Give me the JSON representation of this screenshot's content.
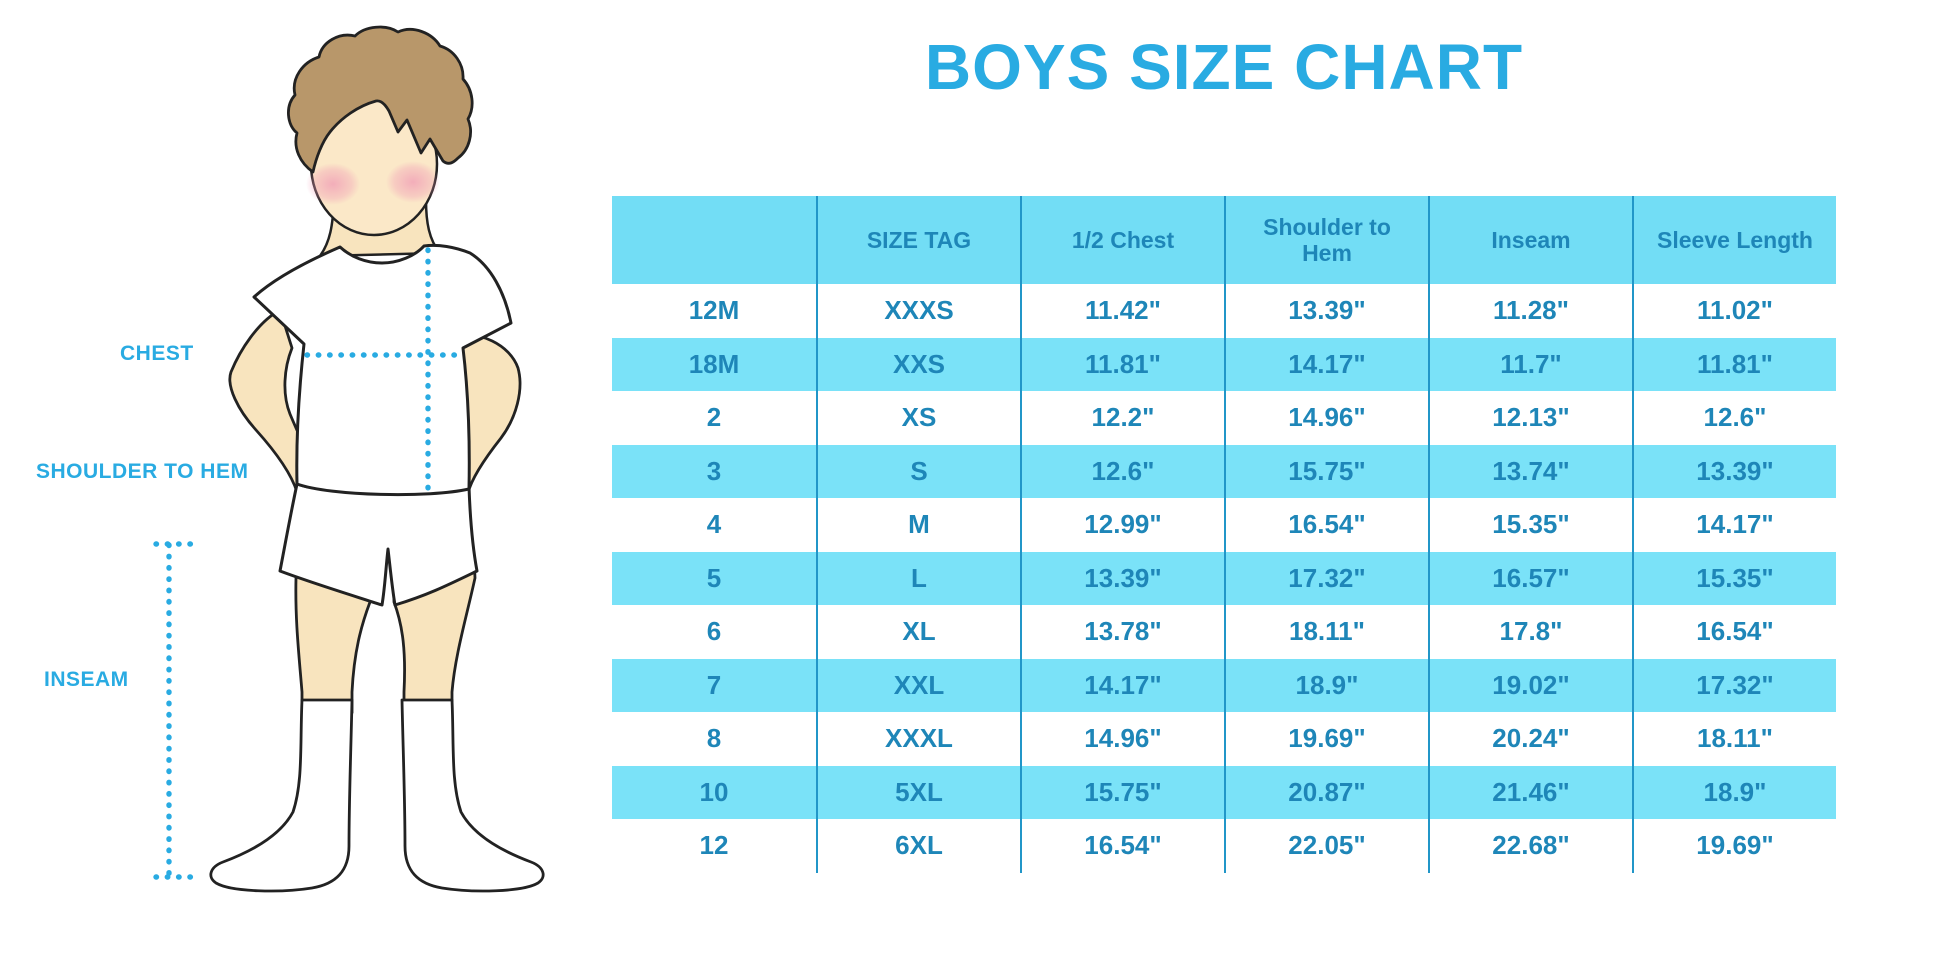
{
  "title": "BOYS SIZE CHART",
  "figure": {
    "chest_label": "CHEST",
    "shoulder_label": "SHOULDER TO HEM",
    "inseam_label": "INSEAM"
  },
  "chart_data": {
    "type": "table",
    "title": "BOYS SIZE CHART",
    "columns": [
      "",
      "SIZE TAG",
      "1/2 Chest",
      "Shoulder to Hem",
      "Inseam",
      "Sleeve Length"
    ],
    "rows": [
      [
        "12M",
        "XXXS",
        "11.42\"",
        "13.39\"",
        "11.28\"",
        "11.02\""
      ],
      [
        "18M",
        "XXS",
        "11.81\"",
        "14.17\"",
        "11.7\"",
        "11.81\""
      ],
      [
        "2",
        "XS",
        "12.2\"",
        "14.96\"",
        "12.13\"",
        "12.6\""
      ],
      [
        "3",
        "S",
        "12.6\"",
        "15.75\"",
        "13.74\"",
        "13.39\""
      ],
      [
        "4",
        "M",
        "12.99\"",
        "16.54\"",
        "15.35\"",
        "14.17\""
      ],
      [
        "5",
        "L",
        "13.39\"",
        "17.32\"",
        "16.57\"",
        "15.35\""
      ],
      [
        "6",
        "XL",
        "13.78\"",
        "18.11\"",
        "17.8\"",
        "16.54\""
      ],
      [
        "7",
        "XXL",
        "14.17\"",
        "18.9\"",
        "19.02\"",
        "17.32\""
      ],
      [
        "8",
        "XXXL",
        "14.96\"",
        "19.69\"",
        "20.24\"",
        "18.11\""
      ],
      [
        "10",
        "5XL",
        "15.75\"",
        "20.87\"",
        "21.46\"",
        "18.9\""
      ],
      [
        "12",
        "6XL",
        "16.54\"",
        "22.05\"",
        "22.68\"",
        "19.69\""
      ]
    ],
    "layout": {
      "row_striping": "alternating white and cyan, first data row white",
      "grid": "vertical column separators only",
      "legend": "none"
    }
  },
  "colors": {
    "accent_blue": "#29ABE2",
    "table_text": "#1E86B8",
    "stripe_cyan": "#7AE2F8",
    "header_cyan": "#72DDF5",
    "grid_line": "#2196C8"
  }
}
